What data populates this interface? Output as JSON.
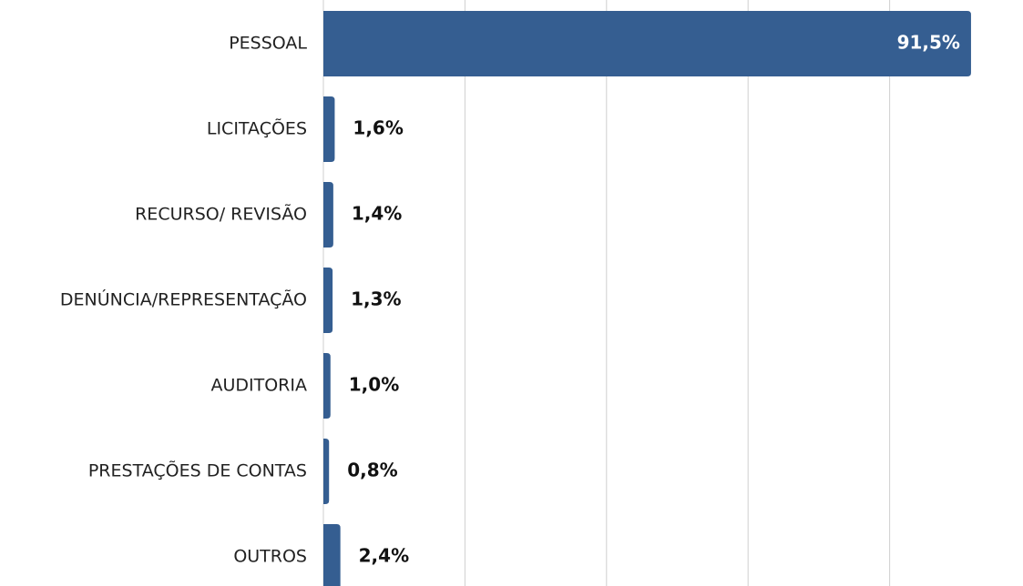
{
  "chart_data": {
    "type": "barh",
    "categories": [
      "PESSOAL",
      "LICITAÇÕES",
      "RECURSO/ REVISÃO",
      "DENÚNCIA/REPRESENTAÇÃO",
      "AUDITORIA",
      "PRESTAÇÕES DE CONTAS",
      "OUTROS"
    ],
    "values": [
      91.5,
      1.6,
      1.4,
      1.3,
      1.0,
      0.8,
      2.4
    ],
    "value_labels": [
      "91,5%",
      "1,6%",
      "1,4%",
      "1,3%",
      "1,0%",
      "0,8%",
      "2,4%"
    ],
    "color": "#355e91",
    "xlim": [
      0,
      95
    ],
    "xticks": [
      0,
      20,
      40,
      60,
      80
    ],
    "grid": true
  }
}
